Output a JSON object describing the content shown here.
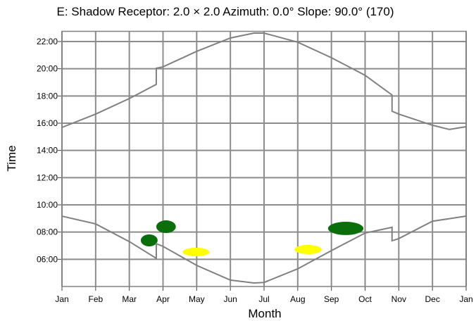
{
  "chart_data": {
    "type": "line",
    "title": "E: Shadow  Receptor: 2.0 × 2.0  Azimuth: 0.0°  Slope: 90.0° (170)",
    "x_label": "Month",
    "y_label": "Time",
    "xlim": [
      0,
      12
    ],
    "ylim": [
      4,
      22.75
    ],
    "xticks": [
      {
        "value": 0,
        "label": "Jan"
      },
      {
        "value": 1,
        "label": "Feb"
      },
      {
        "value": 2,
        "label": "Mar"
      },
      {
        "value": 3,
        "label": "Apr"
      },
      {
        "value": 4,
        "label": "May"
      },
      {
        "value": 5,
        "label": "Jun"
      },
      {
        "value": 6,
        "label": "Jul"
      },
      {
        "value": 7,
        "label": "Aug"
      },
      {
        "value": 8,
        "label": "Sep"
      },
      {
        "value": 9,
        "label": "Oct"
      },
      {
        "value": 10,
        "label": "Nov"
      },
      {
        "value": 11,
        "label": "Dec"
      },
      {
        "value": 12,
        "label": "Jan"
      }
    ],
    "yticks": [
      {
        "value": 6,
        "label": "06:00"
      },
      {
        "value": 8,
        "label": "08:00"
      },
      {
        "value": 10,
        "label": "10:00"
      },
      {
        "value": 12,
        "label": "12:00"
      },
      {
        "value": 14,
        "label": "14:00"
      },
      {
        "value": 16,
        "label": "16:00"
      },
      {
        "value": 18,
        "label": "18:00"
      },
      {
        "value": 20,
        "label": "20:00"
      },
      {
        "value": 22,
        "label": "22:00"
      }
    ],
    "grid": true,
    "series": [
      {
        "color": "#808080",
        "x": [
          0,
          1,
          2,
          2.8,
          2.8,
          3,
          4,
          5,
          5.7,
          6,
          7,
          8,
          9,
          9.8,
          9.8,
          10,
          11,
          12
        ],
        "values": [
          9.17,
          8.6,
          7.3,
          6.07,
          7.15,
          6.95,
          5.55,
          4.47,
          4.26,
          4.3,
          5.3,
          6.64,
          7.93,
          8.35,
          7.36,
          7.52,
          8.8,
          9.17
        ]
      },
      {
        "color": "#808080",
        "x": [
          0,
          1,
          2,
          2.8,
          2.8,
          3,
          4,
          5,
          5.7,
          6,
          7,
          8,
          9,
          9.8,
          9.8,
          10,
          11,
          11.5,
          12
        ],
        "values": [
          15.69,
          16.67,
          17.81,
          18.85,
          20.04,
          20.14,
          21.28,
          22.26,
          22.62,
          22.62,
          21.95,
          20.81,
          19.52,
          18.07,
          16.88,
          16.67,
          15.85,
          15.54,
          15.74
        ]
      }
    ],
    "regions": [
      {
        "color": "#0a6e0a",
        "x": [
          2.8,
          3.38
        ],
        "y": [
          7.93,
          8.86
        ]
      },
      {
        "color": "#0a6e0a",
        "x": [
          2.34,
          2.84
        ],
        "y": [
          6.95,
          7.83
        ]
      },
      {
        "color": "#ffff00",
        "x": [
          3.58,
          4.37
        ],
        "y": [
          6.22,
          6.85
        ]
      },
      {
        "color": "#ffff00",
        "x": [
          6.9,
          7.71
        ],
        "y": [
          6.38,
          7.05
        ]
      },
      {
        "color": "#0a6e0a",
        "x": [
          7.9,
          8.95
        ],
        "y": [
          7.78,
          8.76
        ]
      }
    ]
  }
}
